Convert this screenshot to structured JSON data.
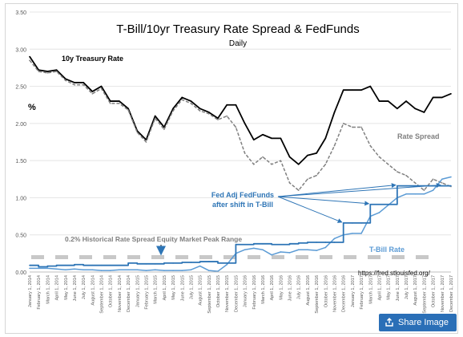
{
  "chart_data": {
    "type": "line",
    "title": "T-Bill/10yr Treasury Rate Spread & FedFunds",
    "subtitle": "Daily",
    "ylabel": "%",
    "ylim": [
      0,
      3.5
    ],
    "y_ticks": [
      "0.00",
      "0.50",
      "1.00",
      "1.50",
      "2.00",
      "2.50",
      "3.00",
      "3.50"
    ],
    "y_tick_values": [
      0,
      0.5,
      1.0,
      1.5,
      2.0,
      2.5,
      3.0,
      3.5
    ],
    "x_tick_labels": [
      "January 1, 2014",
      "February 1, 2014",
      "March 1, 2014",
      "April 1, 2014",
      "May 1, 2014",
      "June 1, 2014",
      "July 1, 2014",
      "August 1, 2014",
      "September 1, 2014",
      "October 1, 2014",
      "November 1, 2014",
      "December 1, 2014",
      "January 1, 2015",
      "February 1, 2015",
      "March 1, 2015",
      "April 1, 2015",
      "May 1, 2015",
      "June 1, 2015",
      "July 1, 2015",
      "August 1, 2015",
      "September 1, 2015",
      "October 1, 2015",
      "November 1, 2015",
      "December 1, 2015",
      "January 1, 2016",
      "February 1, 2016",
      "March 1, 2016",
      "April 1, 2016",
      "May 1, 2016",
      "June 1, 2016",
      "July 1, 2016",
      "August 1, 2016",
      "September 1, 2016",
      "October 1, 2016",
      "November 1, 2016",
      "December 1, 2016",
      "January 1, 2017",
      "February 1, 2017",
      "March 1, 2017",
      "April 1, 2017",
      "May 1, 2017",
      "June 1, 2017",
      "July 1, 2017",
      "August 1, 2017",
      "September 1, 2017",
      "October 1, 2017",
      "November 1, 2017",
      "December 1, 2017"
    ],
    "grid": true,
    "legend": "inline labels",
    "series": [
      {
        "name": "10y Treasury Rate",
        "style": "solid",
        "color": "#000000",
        "values": [
          2.9,
          2.72,
          2.7,
          2.72,
          2.6,
          2.55,
          2.55,
          2.43,
          2.5,
          2.3,
          2.3,
          2.2,
          1.9,
          1.78,
          2.1,
          1.95,
          2.2,
          2.35,
          2.3,
          2.2,
          2.15,
          2.07,
          2.25,
          2.25,
          2.0,
          1.78,
          1.85,
          1.8,
          1.8,
          1.55,
          1.45,
          1.57,
          1.6,
          1.8,
          2.15,
          2.45,
          2.45,
          2.45,
          2.5,
          2.3,
          2.3,
          2.2,
          2.3,
          2.2,
          2.15,
          2.35,
          2.35,
          2.4
        ]
      },
      {
        "name": "Rate Spread",
        "style": "dashed",
        "color": "#808080",
        "values": [
          2.85,
          2.7,
          2.68,
          2.7,
          2.58,
          2.52,
          2.52,
          2.4,
          2.47,
          2.27,
          2.27,
          2.18,
          1.88,
          1.75,
          2.07,
          1.92,
          2.17,
          2.32,
          2.27,
          2.17,
          2.13,
          2.05,
          2.1,
          1.95,
          1.6,
          1.45,
          1.55,
          1.45,
          1.5,
          1.2,
          1.1,
          1.25,
          1.3,
          1.45,
          1.7,
          2.0,
          1.95,
          1.95,
          1.7,
          1.55,
          1.45,
          1.35,
          1.3,
          1.2,
          1.1,
          1.25,
          1.2,
          1.15
        ]
      },
      {
        "name": "T-Bill Rate",
        "style": "solid",
        "color": "#5b9bd5",
        "values": [
          0.05,
          0.05,
          0.05,
          0.04,
          0.03,
          0.04,
          0.03,
          0.03,
          0.02,
          0.02,
          0.03,
          0.03,
          0.03,
          0.02,
          0.03,
          0.02,
          0.02,
          0.02,
          0.03,
          0.08,
          0.02,
          0.01,
          0.1,
          0.25,
          0.3,
          0.32,
          0.3,
          0.23,
          0.27,
          0.26,
          0.3,
          0.3,
          0.29,
          0.33,
          0.45,
          0.5,
          0.52,
          0.52,
          0.75,
          0.8,
          0.9,
          1.0,
          1.05,
          1.05,
          1.05,
          1.1,
          1.25,
          1.28
        ]
      },
      {
        "name": "Fed Adj FedFunds",
        "style": "step",
        "color": "#2e75b6",
        "values": [
          0.09,
          0.07,
          0.08,
          0.09,
          0.09,
          0.1,
          0.09,
          0.09,
          0.09,
          0.09,
          0.09,
          0.12,
          0.11,
          0.11,
          0.11,
          0.12,
          0.12,
          0.13,
          0.13,
          0.14,
          0.14,
          0.12,
          0.12,
          0.37,
          0.37,
          0.38,
          0.38,
          0.37,
          0.37,
          0.38,
          0.39,
          0.4,
          0.4,
          0.4,
          0.4,
          0.66,
          0.66,
          0.66,
          0.91,
          0.91,
          0.91,
          1.16,
          1.16,
          1.16,
          1.16,
          1.16,
          1.16,
          1.16
        ]
      }
    ],
    "annotations": {
      "treasury_label": "10y Treasury Rate",
      "spread_label": "Rate Spread",
      "tbill_label": "T-Bill Rate",
      "fedfunds_label_line1": "Fed Adj FedFunds",
      "fedfunds_label_line2": "after shift in T-Bill",
      "peak_range_label": "0.2% Historical Rate Spread Equity Market Peak Range",
      "peak_range_value": 0.2,
      "source": "https://fred.stlouisfed.org/"
    },
    "colors": {
      "peak_band": "#c8c8c8",
      "annotation_blue": "#2e75b6",
      "grid": "#e4e4e4",
      "axis_text": "#595959"
    }
  },
  "share_button": {
    "label": "Share Image",
    "icon": "share-icon",
    "color": "#2a6fb7"
  }
}
